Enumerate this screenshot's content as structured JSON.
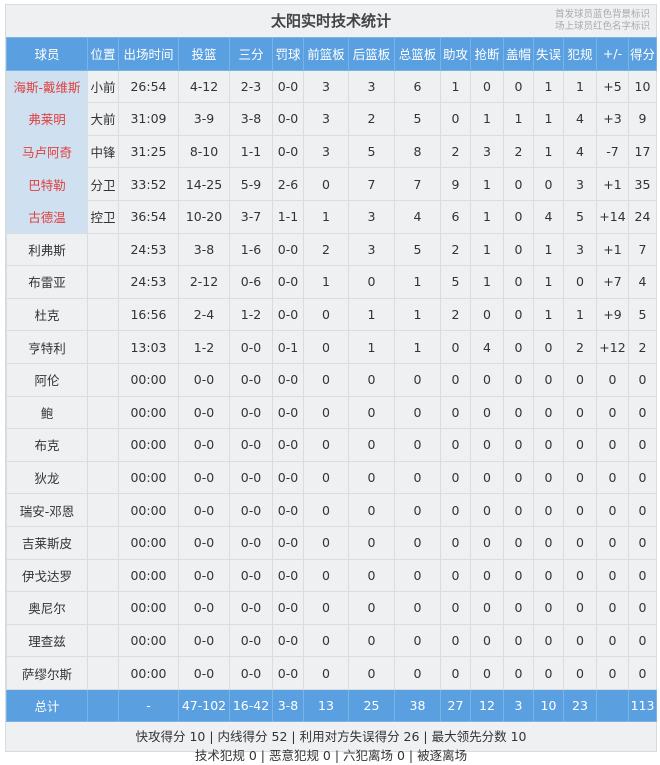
{
  "title": "太阳实时技术统计",
  "legend": [
    "首发球员蓝色背景标识",
    "场上球员红色名字标识"
  ],
  "colors": {
    "header": "#5aa0e0",
    "starter_bg": "#cfe0f0",
    "on_court_name": "#e04040"
  },
  "columns": [
    "球员",
    "位置",
    "出场时间",
    "投篮",
    "三分",
    "罚球",
    "前篮板",
    "后篮板",
    "总篮板",
    "助攻",
    "抢断",
    "盖帽",
    "失误",
    "犯规",
    "+/-",
    "得分"
  ],
  "rows": [
    {
      "starter": true,
      "cells": [
        "海斯-戴维斯",
        "小前",
        "26:54",
        "4-12",
        "2-3",
        "0-0",
        "3",
        "3",
        "6",
        "1",
        "0",
        "0",
        "1",
        "1",
        "+5",
        "10"
      ]
    },
    {
      "starter": true,
      "cells": [
        "弗莱明",
        "大前",
        "31:09",
        "3-9",
        "3-8",
        "0-0",
        "3",
        "2",
        "5",
        "0",
        "1",
        "1",
        "1",
        "4",
        "+3",
        "9"
      ]
    },
    {
      "starter": true,
      "cells": [
        "马卢阿奇",
        "中锋",
        "31:25",
        "8-10",
        "1-1",
        "0-0",
        "3",
        "5",
        "8",
        "2",
        "3",
        "2",
        "1",
        "4",
        "-7",
        "17"
      ]
    },
    {
      "starter": true,
      "cells": [
        "巴特勒",
        "分卫",
        "33:52",
        "14-25",
        "5-9",
        "2-6",
        "0",
        "7",
        "7",
        "9",
        "1",
        "0",
        "0",
        "3",
        "+1",
        "35"
      ]
    },
    {
      "starter": true,
      "cells": [
        "古德温",
        "控卫",
        "36:54",
        "10-20",
        "3-7",
        "1-1",
        "1",
        "3",
        "4",
        "6",
        "1",
        "0",
        "4",
        "5",
        "+14",
        "24"
      ]
    },
    {
      "starter": false,
      "cells": [
        "利弗斯",
        "",
        "24:53",
        "3-8",
        "1-6",
        "0-0",
        "2",
        "3",
        "5",
        "2",
        "1",
        "0",
        "1",
        "3",
        "+1",
        "7"
      ]
    },
    {
      "starter": false,
      "cells": [
        "布雷亚",
        "",
        "24:53",
        "2-12",
        "0-6",
        "0-0",
        "1",
        "0",
        "1",
        "5",
        "1",
        "0",
        "1",
        "0",
        "+7",
        "4"
      ]
    },
    {
      "starter": false,
      "cells": [
        "杜克",
        "",
        "16:56",
        "2-4",
        "1-2",
        "0-0",
        "0",
        "1",
        "1",
        "2",
        "0",
        "0",
        "1",
        "1",
        "+9",
        "5"
      ]
    },
    {
      "starter": false,
      "cells": [
        "亨特利",
        "",
        "13:03",
        "1-2",
        "0-0",
        "0-1",
        "0",
        "1",
        "1",
        "0",
        "4",
        "0",
        "0",
        "2",
        "+12",
        "2"
      ]
    },
    {
      "starter": false,
      "cells": [
        "阿伦",
        "",
        "00:00",
        "0-0",
        "0-0",
        "0-0",
        "0",
        "0",
        "0",
        "0",
        "0",
        "0",
        "0",
        "0",
        "0",
        "0"
      ]
    },
    {
      "starter": false,
      "cells": [
        "鲍",
        "",
        "00:00",
        "0-0",
        "0-0",
        "0-0",
        "0",
        "0",
        "0",
        "0",
        "0",
        "0",
        "0",
        "0",
        "0",
        "0"
      ]
    },
    {
      "starter": false,
      "cells": [
        "布克",
        "",
        "00:00",
        "0-0",
        "0-0",
        "0-0",
        "0",
        "0",
        "0",
        "0",
        "0",
        "0",
        "0",
        "0",
        "0",
        "0"
      ]
    },
    {
      "starter": false,
      "cells": [
        "狄龙",
        "",
        "00:00",
        "0-0",
        "0-0",
        "0-0",
        "0",
        "0",
        "0",
        "0",
        "0",
        "0",
        "0",
        "0",
        "0",
        "0"
      ]
    },
    {
      "starter": false,
      "cells": [
        "瑞安-邓恩",
        "",
        "00:00",
        "0-0",
        "0-0",
        "0-0",
        "0",
        "0",
        "0",
        "0",
        "0",
        "0",
        "0",
        "0",
        "0",
        "0"
      ]
    },
    {
      "starter": false,
      "cells": [
        "吉莱斯皮",
        "",
        "00:00",
        "0-0",
        "0-0",
        "0-0",
        "0",
        "0",
        "0",
        "0",
        "0",
        "0",
        "0",
        "0",
        "0",
        "0"
      ]
    },
    {
      "starter": false,
      "cells": [
        "伊戈达罗",
        "",
        "00:00",
        "0-0",
        "0-0",
        "0-0",
        "0",
        "0",
        "0",
        "0",
        "0",
        "0",
        "0",
        "0",
        "0",
        "0"
      ]
    },
    {
      "starter": false,
      "cells": [
        "奥尼尔",
        "",
        "00:00",
        "0-0",
        "0-0",
        "0-0",
        "0",
        "0",
        "0",
        "0",
        "0",
        "0",
        "0",
        "0",
        "0",
        "0"
      ]
    },
    {
      "starter": false,
      "cells": [
        "理查兹",
        "",
        "00:00",
        "0-0",
        "0-0",
        "0-0",
        "0",
        "0",
        "0",
        "0",
        "0",
        "0",
        "0",
        "0",
        "0",
        "0"
      ]
    },
    {
      "starter": false,
      "cells": [
        "萨缪尔斯",
        "",
        "00:00",
        "0-0",
        "0-0",
        "0-0",
        "0",
        "0",
        "0",
        "0",
        "0",
        "0",
        "0",
        "0",
        "0",
        "0"
      ]
    }
  ],
  "total": [
    "总计",
    "",
    "-",
    "47-102",
    "16-42",
    "3-8",
    "13",
    "25",
    "38",
    "27",
    "12",
    "3",
    "10",
    "23",
    "",
    "113"
  ],
  "footer": [
    "快攻得分 10 | 内线得分 52 | 利用对方失误得分 26 | 最大领先分数 10",
    "技术犯规 0 | 恶意犯规 0 | 六犯离场 0 | 被逐离场"
  ]
}
